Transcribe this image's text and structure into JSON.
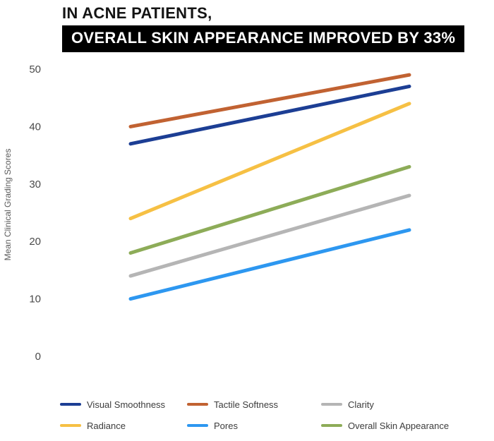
{
  "header": {
    "title_line1": "IN ACNE PATIENTS,",
    "title_line2": "OVERALL SKIN APPEARANCE IMPROVED BY 33%"
  },
  "chart_data": {
    "type": "line",
    "title": "IN ACNE PATIENTS, OVERALL SKIN APPEARANCE IMPROVED BY 33%",
    "categories": [
      "",
      ""
    ],
    "series": [
      {
        "name": "Visual Smoothness",
        "color": "#1c3e94",
        "values": [
          37,
          47
        ]
      },
      {
        "name": "Tactile Softness",
        "color": "#c16232",
        "values": [
          40,
          49
        ]
      },
      {
        "name": "Clarity",
        "color": "#b5b5b5",
        "values": [
          14,
          28
        ]
      },
      {
        "name": "Radiance",
        "color": "#f6c044",
        "values": [
          24,
          44
        ]
      },
      {
        "name": "Pores",
        "color": "#2d97f0",
        "values": [
          10,
          22
        ]
      },
      {
        "name": "Overall Skin Appearance",
        "color": "#8dac58",
        "values": [
          18,
          33
        ]
      }
    ],
    "xlabel": "",
    "ylabel": "Mean Clinical Grading Scores",
    "ylim": [
      0,
      50
    ],
    "yticks": [
      0,
      10,
      20,
      30,
      40,
      50
    ],
    "grid": false,
    "legend_position": "bottom"
  },
  "legend": {
    "items": [
      {
        "label": "Visual Smoothness",
        "color": "#1c3e94"
      },
      {
        "label": "Tactile Softness",
        "color": "#c16232"
      },
      {
        "label": "Clarity",
        "color": "#b5b5b5"
      },
      {
        "label": "Radiance",
        "color": "#f6c044"
      },
      {
        "label": "Pores",
        "color": "#2d97f0"
      },
      {
        "label": "Overall Skin Appearance",
        "color": "#8dac58"
      }
    ]
  }
}
